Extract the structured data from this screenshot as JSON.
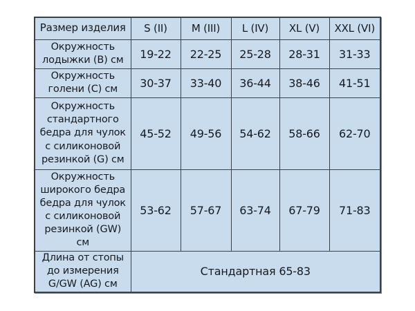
{
  "table": {
    "header": {
      "label": "Размер изделия",
      "sizes": [
        "S (II)",
        "M (III)",
        "L (IV)",
        "XL (V)",
        "XXL (VI)"
      ]
    },
    "rows": [
      {
        "label": "Окружность лодыжки (B) см",
        "values": [
          "19-22",
          "22-25",
          "25-28",
          "28-31",
          "31-33"
        ]
      },
      {
        "label": "Окружность голени (C) см",
        "values": [
          "30-37",
          "33-40",
          "36-44",
          "38-46",
          "41-51"
        ]
      },
      {
        "label": "Окружность стандартного бедра для чулок с силиконовой резинкой (G) см",
        "values": [
          "45-52",
          "49-56",
          "54-62",
          "58-66",
          "62-70"
        ]
      },
      {
        "label": "Окружность широкого бедра бедра для чулок с силиконовой резинкой (GW) см",
        "values": [
          "53-62",
          "57-67",
          "63-74",
          "67-79",
          "71-83"
        ]
      }
    ],
    "footer": {
      "label": "Длина от стопы до измерения G/GW (AG) см",
      "value": "Стандартная 65-83"
    }
  },
  "colors": {
    "page_bg": "#ffffff",
    "cell_bg": "#c9dcee",
    "border": "#39414d",
    "text": "#17191e"
  }
}
